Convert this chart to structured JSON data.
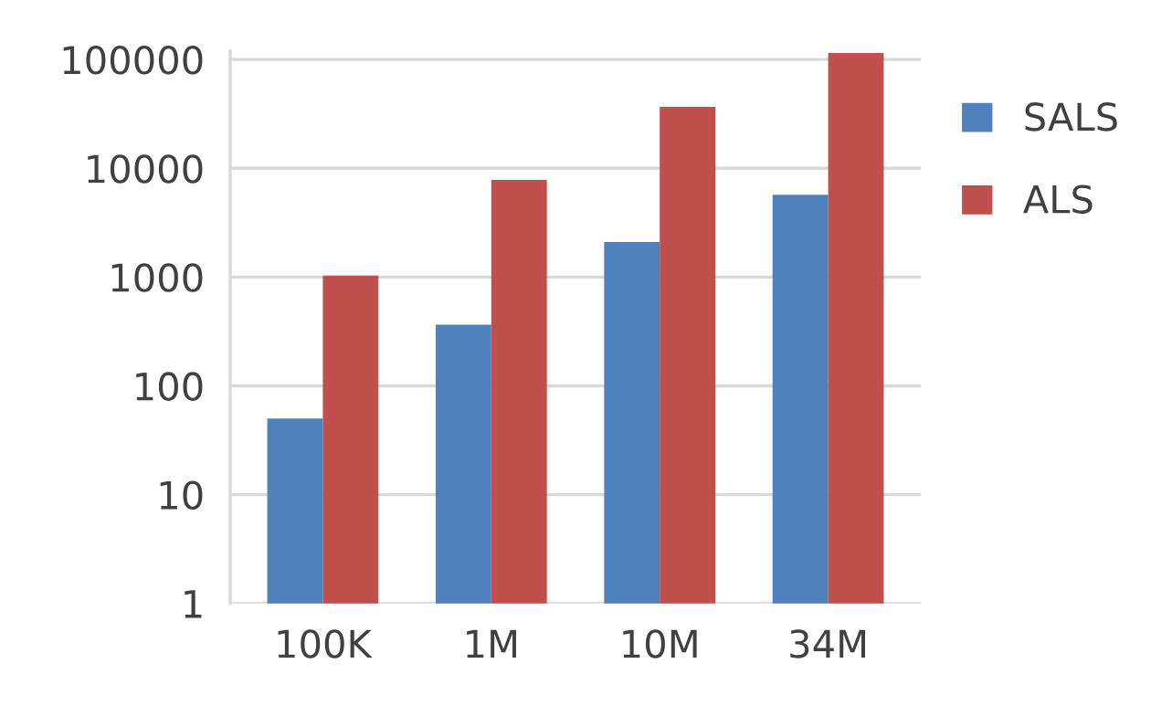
{
  "chart_data": {
    "type": "bar",
    "categories": [
      "100K",
      "1M",
      "10M",
      "34M"
    ],
    "series": [
      {
        "name": "SALS",
        "color": "#4f81bd",
        "values": [
          50,
          365,
          2100,
          5700
        ]
      },
      {
        "name": "ALS",
        "color": "#c0504d",
        "values": [
          1030,
          7800,
          36700,
          115000
        ]
      }
    ],
    "log": "y",
    "ylim": [
      1,
      120000
    ],
    "yticks": [
      1,
      10,
      100,
      1000,
      10000,
      100000
    ],
    "grid": "y",
    "legend": "right"
  }
}
